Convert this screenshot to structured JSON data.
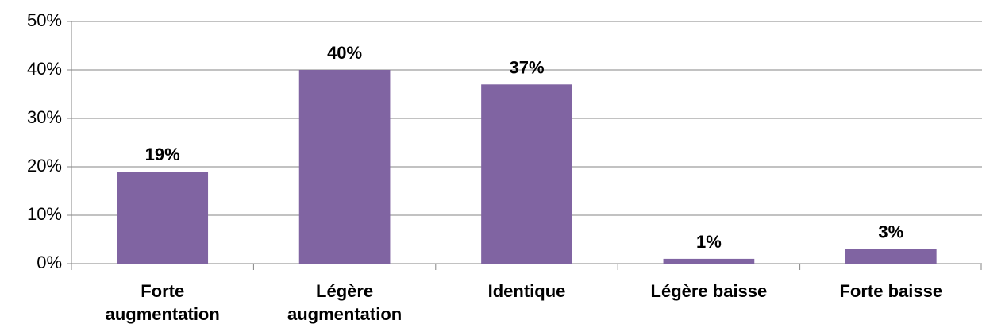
{
  "chart_data": {
    "type": "bar",
    "title": "",
    "xlabel": "",
    "ylabel": "",
    "categories": [
      [
        "Forte",
        "augmentation"
      ],
      [
        "Légère",
        "augmentation"
      ],
      [
        "Identique"
      ],
      [
        "Légère baisse"
      ],
      [
        "Forte baisse"
      ]
    ],
    "values": [
      19,
      40,
      37,
      1,
      3
    ],
    "data_labels": [
      "19%",
      "40%",
      "37%",
      "1%",
      "3%"
    ],
    "ylim": [
      0,
      50
    ],
    "yticks": [
      0,
      10,
      20,
      30,
      40,
      50
    ],
    "ytick_labels": [
      "0%",
      "10%",
      "20%",
      "30%",
      "40%",
      "50%"
    ],
    "grid": true,
    "legend": "none",
    "bar_color": "#8064a2",
    "grid_color": "#868686"
  }
}
